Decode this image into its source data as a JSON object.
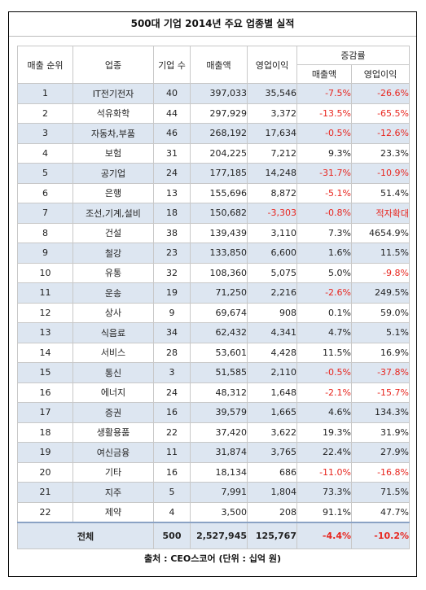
{
  "title": "500대 기업 2014년 주요 업종별 실적",
  "headers": {
    "rank": "매출 순위",
    "industry": "업종",
    "companies": "기업 수",
    "sales": "매출액",
    "operating_profit": "영업이익",
    "change": "증감률",
    "change_sales": "매출액",
    "change_op": "영업이익"
  },
  "rows": [
    {
      "rank": "1",
      "industry": "IT전기전자",
      "companies": "40",
      "sales": "397,033",
      "op": "35,546",
      "chg_sales": "-7.5%",
      "chg_op": "-26.6%"
    },
    {
      "rank": "2",
      "industry": "석유화학",
      "companies": "44",
      "sales": "297,929",
      "op": "3,372",
      "chg_sales": "-13.5%",
      "chg_op": "-65.5%"
    },
    {
      "rank": "3",
      "industry": "자동차,부품",
      "companies": "46",
      "sales": "268,192",
      "op": "17,634",
      "chg_sales": "-0.5%",
      "chg_op": "-12.6%"
    },
    {
      "rank": "4",
      "industry": "보험",
      "companies": "31",
      "sales": "204,225",
      "op": "7,212",
      "chg_sales": "9.3%",
      "chg_op": "23.3%"
    },
    {
      "rank": "5",
      "industry": "공기업",
      "companies": "24",
      "sales": "177,185",
      "op": "14,248",
      "chg_sales": "-31.7%",
      "chg_op": "-10.9%"
    },
    {
      "rank": "6",
      "industry": "은행",
      "companies": "13",
      "sales": "155,696",
      "op": "8,872",
      "chg_sales": "-5.1%",
      "chg_op": "51.4%"
    },
    {
      "rank": "7",
      "industry": "조선,기계,설비",
      "companies": "18",
      "sales": "150,682",
      "op": "-3,303",
      "chg_sales": "-0.8%",
      "chg_op": "적자확대"
    },
    {
      "rank": "8",
      "industry": "건설",
      "companies": "38",
      "sales": "139,439",
      "op": "3,110",
      "chg_sales": "7.3%",
      "chg_op": "4654.9%"
    },
    {
      "rank": "9",
      "industry": "철강",
      "companies": "23",
      "sales": "133,850",
      "op": "6,600",
      "chg_sales": "1.6%",
      "chg_op": "11.5%"
    },
    {
      "rank": "10",
      "industry": "유통",
      "companies": "32",
      "sales": "108,360",
      "op": "5,075",
      "chg_sales": "5.0%",
      "chg_op": "-9.8%"
    },
    {
      "rank": "11",
      "industry": "운송",
      "companies": "19",
      "sales": "71,250",
      "op": "2,216",
      "chg_sales": "-2.6%",
      "chg_op": "249.5%"
    },
    {
      "rank": "12",
      "industry": "상사",
      "companies": "9",
      "sales": "69,674",
      "op": "908",
      "chg_sales": "0.1%",
      "chg_op": "59.0%"
    },
    {
      "rank": "13",
      "industry": "식음료",
      "companies": "34",
      "sales": "62,432",
      "op": "4,341",
      "chg_sales": "4.7%",
      "chg_op": "5.1%"
    },
    {
      "rank": "14",
      "industry": "서비스",
      "companies": "28",
      "sales": "53,601",
      "op": "4,428",
      "chg_sales": "11.5%",
      "chg_op": "16.9%"
    },
    {
      "rank": "15",
      "industry": "통신",
      "companies": "3",
      "sales": "51,585",
      "op": "2,110",
      "chg_sales": "-0.5%",
      "chg_op": "-37.8%"
    },
    {
      "rank": "16",
      "industry": "에너지",
      "companies": "24",
      "sales": "48,312",
      "op": "1,648",
      "chg_sales": "-2.1%",
      "chg_op": "-15.7%"
    },
    {
      "rank": "17",
      "industry": "증권",
      "companies": "16",
      "sales": "39,579",
      "op": "1,665",
      "chg_sales": "4.6%",
      "chg_op": "134.3%"
    },
    {
      "rank": "18",
      "industry": "생활용품",
      "companies": "22",
      "sales": "37,420",
      "op": "3,622",
      "chg_sales": "19.3%",
      "chg_op": "31.9%"
    },
    {
      "rank": "19",
      "industry": "여신금융",
      "companies": "11",
      "sales": "31,874",
      "op": "3,765",
      "chg_sales": "22.4%",
      "chg_op": "27.9%"
    },
    {
      "rank": "20",
      "industry": "기타",
      "companies": "16",
      "sales": "18,134",
      "op": "686",
      "chg_sales": "-11.0%",
      "chg_op": "-16.8%"
    },
    {
      "rank": "21",
      "industry": "지주",
      "companies": "5",
      "sales": "7,991",
      "op": "1,804",
      "chg_sales": "73.3%",
      "chg_op": "71.5%"
    },
    {
      "rank": "22",
      "industry": "제약",
      "companies": "4",
      "sales": "3,500",
      "op": "208",
      "chg_sales": "91.1%",
      "chg_op": "47.7%"
    }
  ],
  "total": {
    "label": "전체",
    "companies": "500",
    "sales": "2,527,945",
    "op": "125,767",
    "chg_sales": "-4.4%",
    "chg_op": "-10.2%"
  },
  "source": "출처 : CEO스코어 (단위 : 십억 원)",
  "colors": {
    "negative": "#e8251e",
    "row_shade": "#dde6f1"
  }
}
